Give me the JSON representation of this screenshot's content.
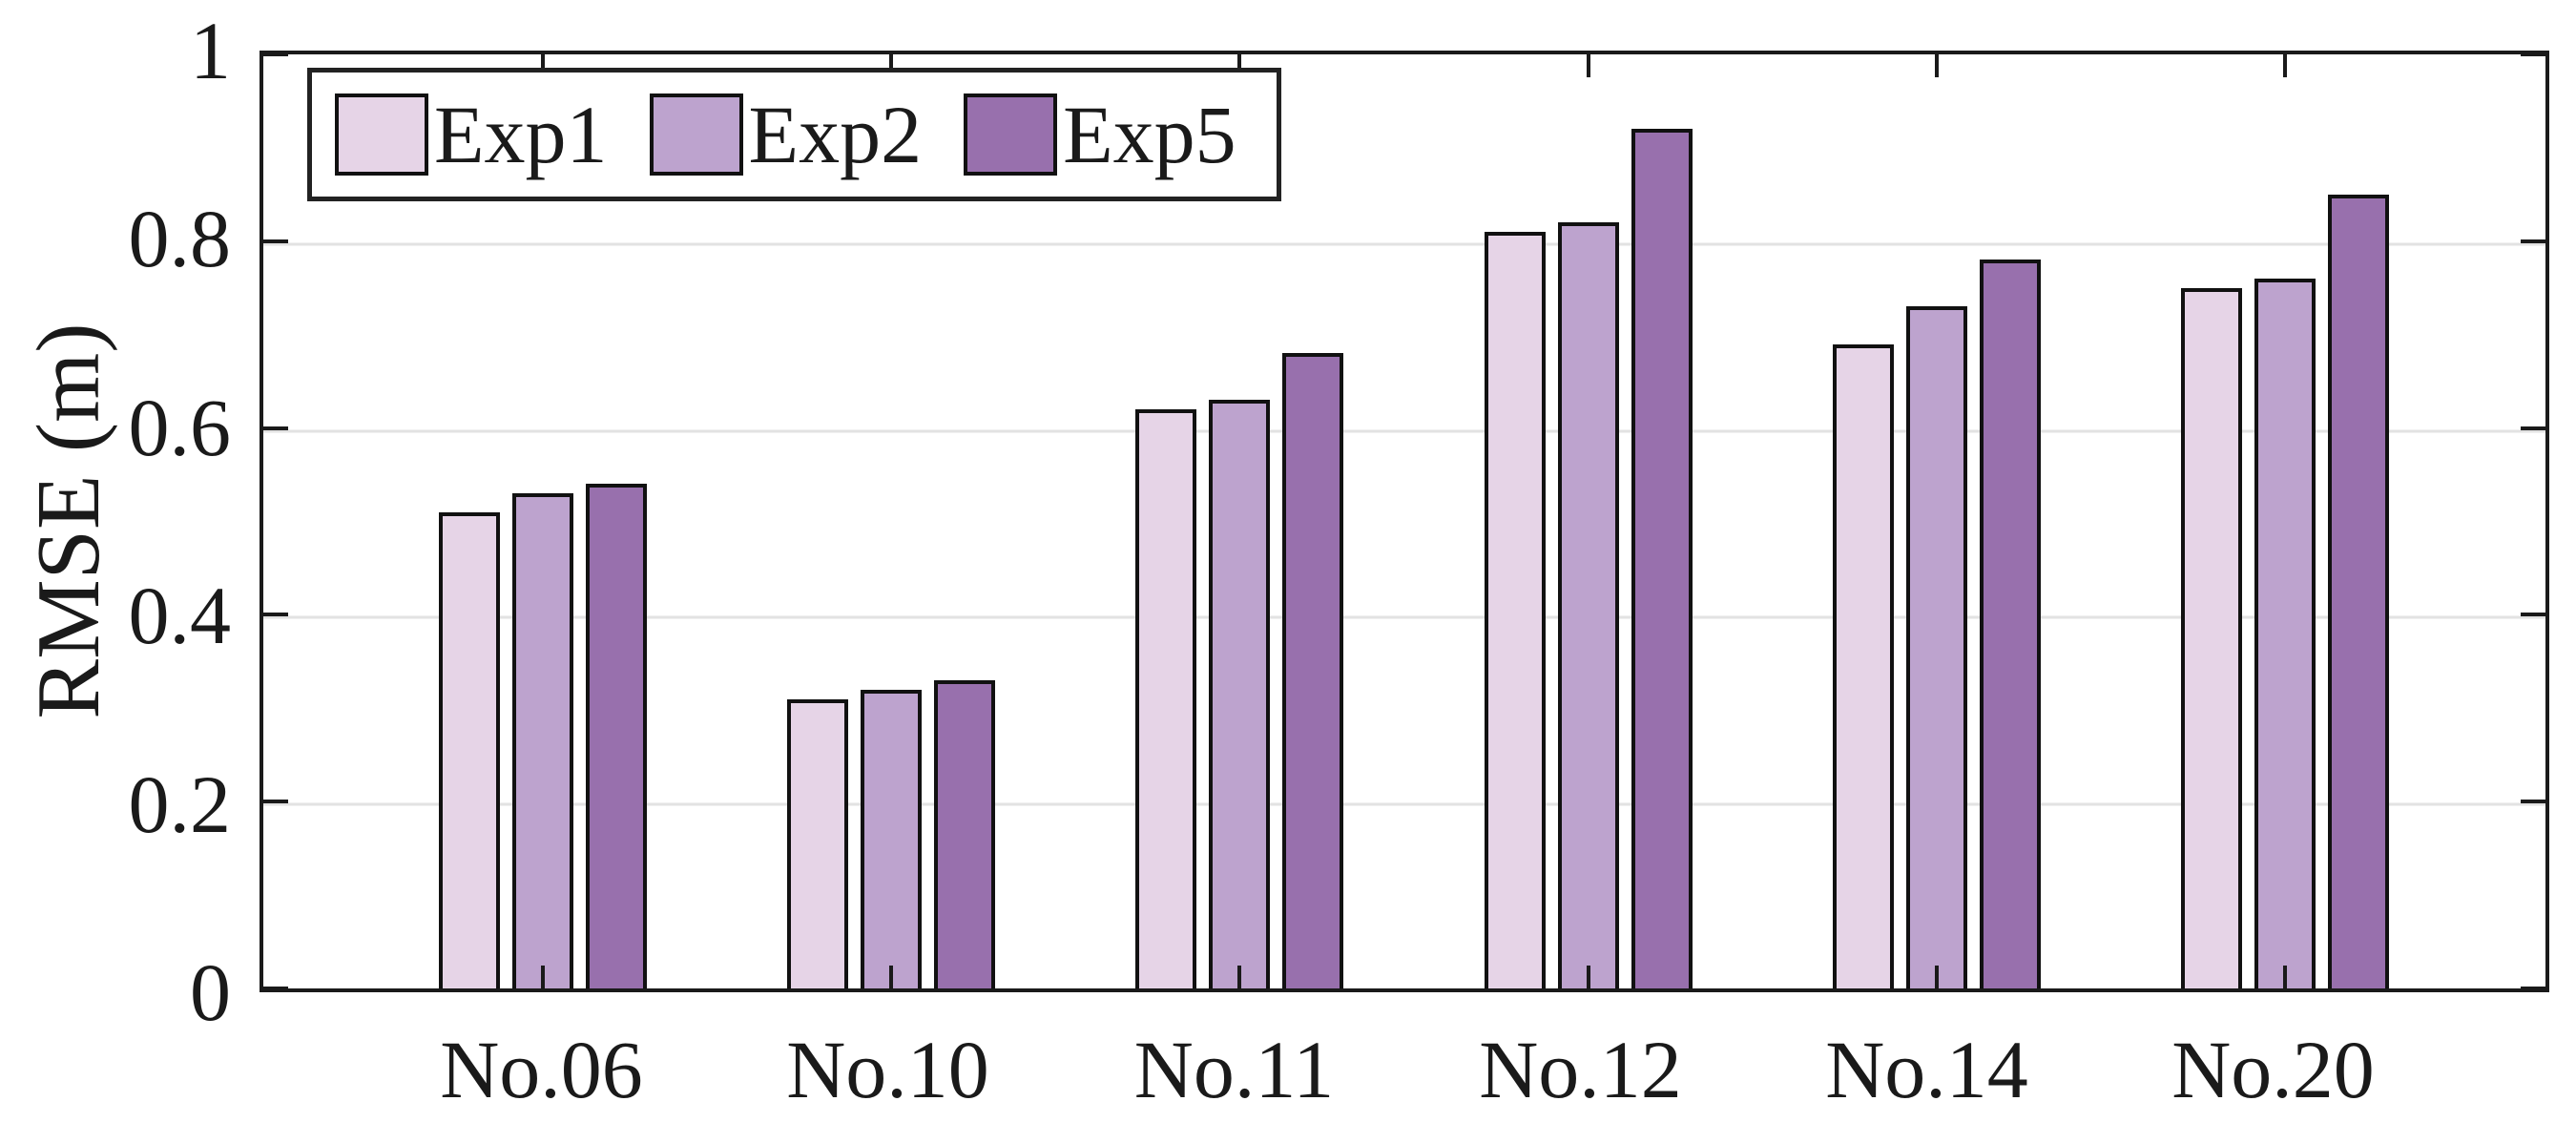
{
  "chart_data": {
    "type": "bar",
    "title": "",
    "xlabel": "",
    "ylabel": "RMSE (m)",
    "categories": [
      "No.06",
      "No.10",
      "No.11",
      "No.12",
      "No.14",
      "No.20"
    ],
    "series": [
      {
        "name": "Exp1",
        "color": "#e6d4e7",
        "values": [
          0.51,
          0.31,
          0.62,
          0.81,
          0.69,
          0.75
        ]
      },
      {
        "name": "Exp2",
        "color": "#bda3ce",
        "values": [
          0.53,
          0.32,
          0.63,
          0.82,
          0.73,
          0.76
        ]
      },
      {
        "name": "Exp5",
        "color": "#9870ad",
        "values": [
          0.54,
          0.33,
          0.68,
          0.92,
          0.78,
          0.85
        ]
      }
    ],
    "ylim": [
      0,
      1
    ],
    "yticks": [
      0,
      0.2,
      0.4,
      0.6,
      0.8,
      1
    ],
    "ytick_labels": [
      "0",
      "0.2",
      "0.4",
      "0.6",
      "0.8",
      "1"
    ],
    "grid": "horizontal",
    "grid_color": "#e2e2e2",
    "bar_edge_color": "#111111",
    "axis_color": "#1a1a1a",
    "legend_position": "top-left",
    "legend_orientation": "horizontal"
  }
}
